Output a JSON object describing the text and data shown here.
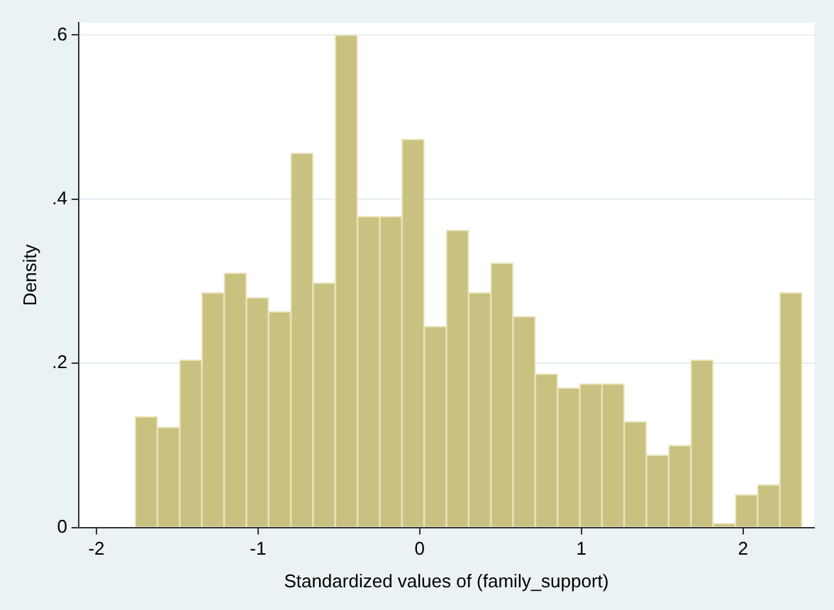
{
  "chart_data": {
    "type": "histogram",
    "xlabel": "Standardized values of (family_support)",
    "ylabel": "Density",
    "bins": [
      -1.76,
      -1.6225,
      -1.485,
      -1.3475,
      -1.21,
      -1.0725,
      -0.935,
      -0.7975,
      -0.66,
      -0.5225,
      -0.385,
      -0.2475,
      -0.11,
      0.0275,
      0.165,
      0.3025,
      0.44,
      0.5775,
      0.715,
      0.8525,
      0.99,
      1.1275,
      1.265,
      1.4025,
      1.54,
      1.6775,
      1.815,
      1.9525,
      2.09,
      2.2275,
      2.365
    ],
    "values": [
      0.135,
      0.122,
      0.204,
      0.286,
      0.31,
      0.28,
      0.263,
      0.456,
      0.298,
      0.6,
      0.379,
      0.379,
      0.473,
      0.245,
      0.362,
      0.286,
      0.322,
      0.257,
      0.187,
      0.17,
      0.175,
      0.175,
      0.129,
      0.088,
      0.1,
      0.204,
      0.005,
      0.04,
      0.052,
      0.286
    ],
    "color": "#c9c17f",
    "xlim": [
      -2.11,
      2.44
    ],
    "xticks": [
      -2,
      -1,
      0,
      1,
      2
    ],
    "ylim": [
      0,
      0.615
    ],
    "yticks": [
      0,
      {
        "value": 0.2,
        "label": ".2"
      },
      {
        "value": 0.4,
        "label": ".4"
      },
      {
        "value": 0.6,
        "label": ".6"
      }
    ],
    "grid": "y",
    "legend": false
  }
}
